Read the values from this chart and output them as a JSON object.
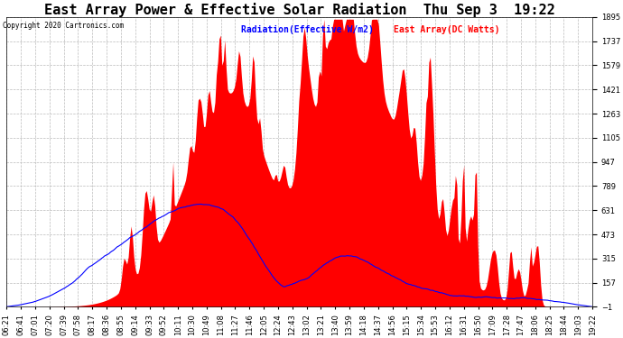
{
  "title": "East Array Power & Effective Solar Radiation  Thu Sep 3  19:22",
  "copyright": "Copyright 2020 Cartronics.com",
  "legend_radiation": "Radiation(Effective W/m2)",
  "legend_east": "East Array(DC Watts)",
  "ymin": -1.1,
  "ymax": 1894.9,
  "yticks": [
    -1.1,
    156.9,
    314.9,
    472.9,
    630.9,
    788.9,
    946.9,
    1104.9,
    1262.9,
    1420.9,
    1578.9,
    1736.9,
    1894.9
  ],
  "background_color": "#ffffff",
  "grid_color": "#aaaaaa",
  "title_fontsize": 11,
  "tick_fontsize": 6,
  "time_labels": [
    "06:21",
    "06:41",
    "07:01",
    "07:20",
    "07:39",
    "07:58",
    "08:17",
    "08:36",
    "08:55",
    "09:14",
    "09:33",
    "09:52",
    "10:11",
    "10:30",
    "10:49",
    "11:08",
    "11:27",
    "11:46",
    "12:05",
    "12:24",
    "12:43",
    "13:02",
    "13:21",
    "13:40",
    "13:59",
    "14:18",
    "14:37",
    "14:56",
    "15:15",
    "15:34",
    "15:53",
    "16:12",
    "16:31",
    "16:50",
    "17:09",
    "17:28",
    "17:47",
    "18:06",
    "18:25",
    "18:44",
    "19:03",
    "19:22"
  ]
}
